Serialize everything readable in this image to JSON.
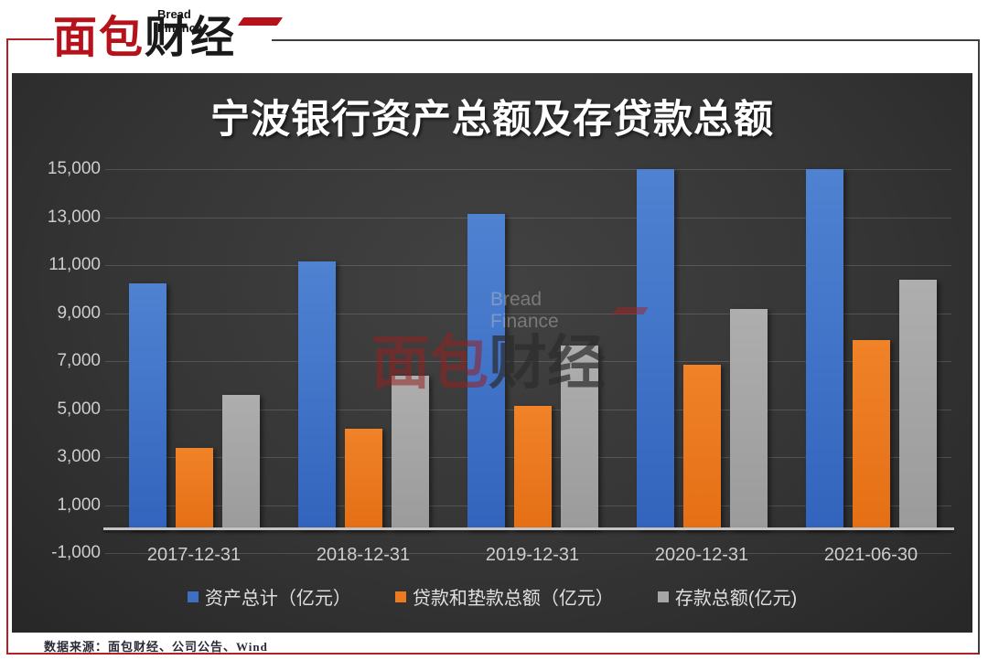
{
  "brand": {
    "logo_top_text": "Bread Finance",
    "logo_main_red": "面包",
    "logo_main_black": "财经",
    "red_color": "#b5121b"
  },
  "chart_data": {
    "type": "bar",
    "title": "宁波银行资产总额及存贷款总额",
    "categories": [
      "2017-12-31",
      "2018-12-31",
      "2019-12-31",
      "2020-12-31",
      "2021-06-30"
    ],
    "series": [
      {
        "name": "资产总计（亿元）",
        "color_top": "#5082d2",
        "color_bottom": "#3264bd",
        "legend_color": "#3f6fc4",
        "values": [
          10250,
          11150,
          13150,
          15000,
          15000
        ]
      },
      {
        "name": "贷款和垫款总额（亿元）",
        "color_top": "#f08228",
        "color_bottom": "#e56f15",
        "legend_color": "#ec7a1f",
        "values": [
          3400,
          4200,
          5150,
          6850,
          7900
        ]
      },
      {
        "name": "存款总额(亿元)",
        "color_top": "#aeaeae",
        "color_bottom": "#9b9b9b",
        "legend_color": "#a6a6a6",
        "values": [
          5600,
          6400,
          7650,
          9200,
          10400
        ]
      }
    ],
    "ylim": [
      -1000,
      15000
    ],
    "yticks": [
      {
        "value": 15000,
        "label": "15,000"
      },
      {
        "value": 13000,
        "label": "13,000"
      },
      {
        "value": 11000,
        "label": "11,000"
      },
      {
        "value": 9000,
        "label": "9,000"
      },
      {
        "value": 7000,
        "label": "7,000"
      },
      {
        "value": 5000,
        "label": "5,000"
      },
      {
        "value": 3000,
        "label": "3,000"
      },
      {
        "value": 1000,
        "label": "1,000"
      },
      {
        "value": -1000,
        "label": "-1,000"
      }
    ],
    "grid": true,
    "zero_axis_line": true,
    "legend_position": "bottom"
  },
  "watermark": {
    "top_text": "Bread Finance",
    "main_red": "面包",
    "main_dark": "财经"
  },
  "footer": {
    "source": "数据来源：面包财经、公司公告、Wind"
  }
}
